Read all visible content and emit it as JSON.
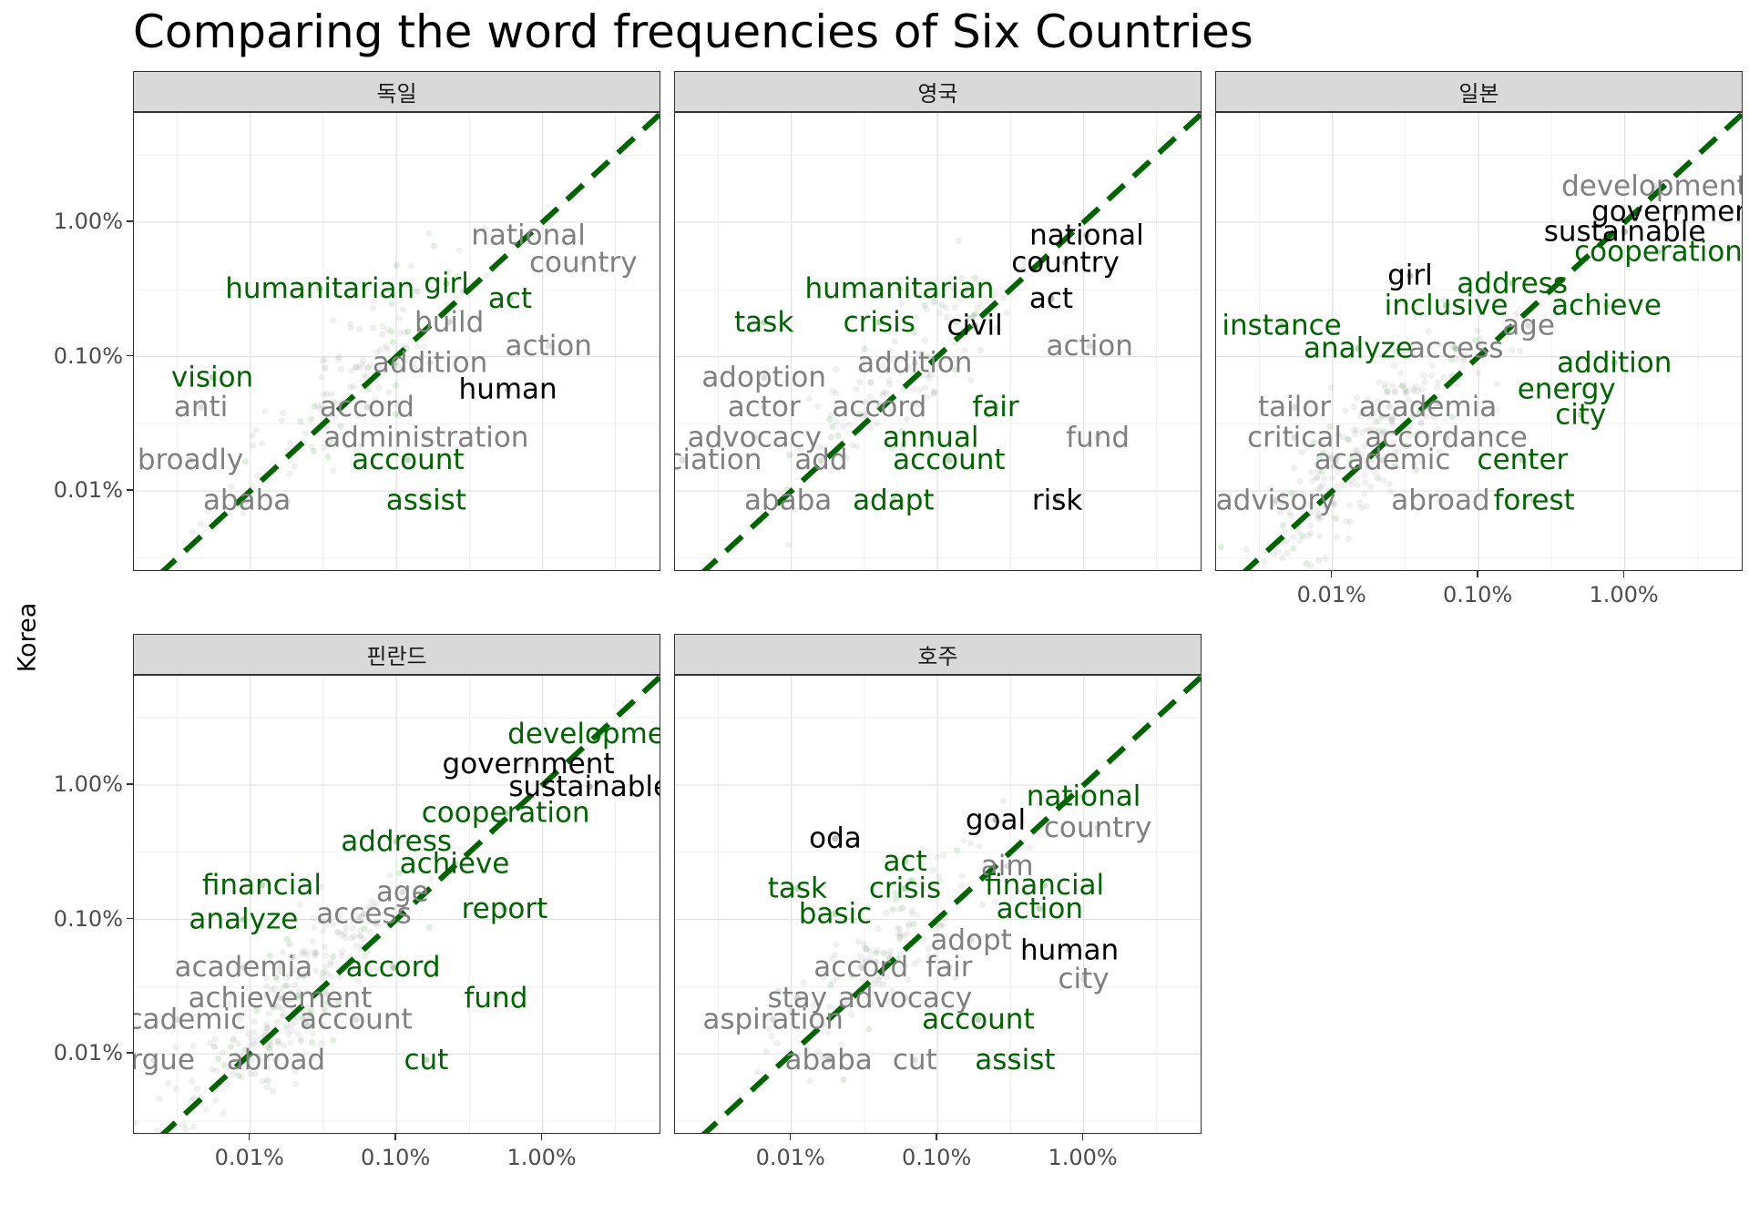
{
  "chart_data": {
    "type": "scatter",
    "title": "Comparing the word frequencies of Six Countries",
    "ylabel": "Korea",
    "xlabel": "",
    "scale": "log10",
    "xlim_percent": [
      0.0016,
      6.5
    ],
    "ylim_percent": [
      0.0025,
      6.5
    ],
    "x_tick_labels": [
      "0.01%",
      "0.10%",
      "1.00%"
    ],
    "y_tick_labels": [
      "0.01%",
      "0.10%",
      "1.00%"
    ],
    "grid": true,
    "reference_line": "y = x (dashed, dark green)",
    "colors": {
      "green": "#006400",
      "black": "#000000",
      "gray": "#808080",
      "point": "#999999"
    },
    "panels": [
      {
        "name": "독일",
        "words": [
          {
            "text": "national",
            "x": 0.8,
            "y": 0.8,
            "color": "gray"
          },
          {
            "text": "country",
            "x": 1.9,
            "y": 0.5,
            "color": "gray"
          },
          {
            "text": "humanitarian",
            "x": 0.03,
            "y": 0.32,
            "color": "green"
          },
          {
            "text": "girl",
            "x": 0.22,
            "y": 0.35,
            "color": "green"
          },
          {
            "text": "act",
            "x": 0.6,
            "y": 0.27,
            "color": "green"
          },
          {
            "text": "build",
            "x": 0.23,
            "y": 0.18,
            "color": "gray"
          },
          {
            "text": "action",
            "x": 1.1,
            "y": 0.12,
            "color": "gray"
          },
          {
            "text": "vision",
            "x": 0.0055,
            "y": 0.07,
            "color": "green"
          },
          {
            "text": "addition",
            "x": 0.17,
            "y": 0.09,
            "color": "gray"
          },
          {
            "text": "human",
            "x": 0.58,
            "y": 0.057,
            "color": "black"
          },
          {
            "text": "anti",
            "x": 0.0046,
            "y": 0.042,
            "color": "gray"
          },
          {
            "text": "accord",
            "x": 0.063,
            "y": 0.042,
            "color": "gray"
          },
          {
            "text": "administration",
            "x": 0.16,
            "y": 0.025,
            "color": "gray"
          },
          {
            "text": "broadly",
            "x": 0.0039,
            "y": 0.017,
            "color": "gray"
          },
          {
            "text": "account",
            "x": 0.12,
            "y": 0.017,
            "color": "green"
          },
          {
            "text": "ababa",
            "x": 0.0095,
            "y": 0.0085,
            "color": "gray"
          },
          {
            "text": "assist",
            "x": 0.16,
            "y": 0.0085,
            "color": "green"
          }
        ]
      },
      {
        "name": "영국",
        "words": [
          {
            "text": "national",
            "x": 1.05,
            "y": 0.8,
            "color": "black"
          },
          {
            "text": "country",
            "x": 0.75,
            "y": 0.5,
            "color": "black"
          },
          {
            "text": "humanitarian",
            "x": 0.055,
            "y": 0.32,
            "color": "green"
          },
          {
            "text": "act",
            "x": 0.6,
            "y": 0.27,
            "color": "black"
          },
          {
            "text": "task",
            "x": 0.0065,
            "y": 0.18,
            "color": "green"
          },
          {
            "text": "crisis",
            "x": 0.04,
            "y": 0.18,
            "color": "green"
          },
          {
            "text": "civil",
            "x": 0.18,
            "y": 0.17,
            "color": "black"
          },
          {
            "text": "action",
            "x": 1.1,
            "y": 0.12,
            "color": "gray"
          },
          {
            "text": "adoption",
            "x": 0.0065,
            "y": 0.07,
            "color": "gray"
          },
          {
            "text": "addition",
            "x": 0.07,
            "y": 0.09,
            "color": "gray"
          },
          {
            "text": "actor",
            "x": 0.0065,
            "y": 0.042,
            "color": "gray"
          },
          {
            "text": "accord",
            "x": 0.04,
            "y": 0.042,
            "color": "gray"
          },
          {
            "text": "fair",
            "x": 0.25,
            "y": 0.042,
            "color": "green"
          },
          {
            "text": "advocacy",
            "x": 0.0056,
            "y": 0.025,
            "color": "gray"
          },
          {
            "text": "annual",
            "x": 0.09,
            "y": 0.025,
            "color": "green"
          },
          {
            "text": "fund",
            "x": 1.25,
            "y": 0.025,
            "color": "gray"
          },
          {
            "text": "association",
            "x": 0.0018,
            "y": 0.017,
            "color": "gray"
          },
          {
            "text": "add",
            "x": 0.016,
            "y": 0.017,
            "color": "gray"
          },
          {
            "text": "account",
            "x": 0.12,
            "y": 0.017,
            "color": "green"
          },
          {
            "text": "ababa",
            "x": 0.0095,
            "y": 0.0085,
            "color": "gray"
          },
          {
            "text": "adapt",
            "x": 0.05,
            "y": 0.0085,
            "color": "green"
          },
          {
            "text": "risk",
            "x": 0.66,
            "y": 0.0085,
            "color": "black"
          }
        ]
      },
      {
        "name": "일본",
        "words": [
          {
            "text": "development",
            "x": 1.6,
            "y": 1.85,
            "color": "gray"
          },
          {
            "text": "government",
            "x": 2.3,
            "y": 1.2,
            "color": "black"
          },
          {
            "text": "sustainable",
            "x": 1.0,
            "y": 0.85,
            "color": "black"
          },
          {
            "text": "cooperation",
            "x": 1.7,
            "y": 0.6,
            "color": "green"
          },
          {
            "text": "girl",
            "x": 0.034,
            "y": 0.4,
            "color": "black"
          },
          {
            "text": "address",
            "x": 0.17,
            "y": 0.35,
            "color": "green"
          },
          {
            "text": "inclusive",
            "x": 0.06,
            "y": 0.24,
            "color": "green"
          },
          {
            "text": "achieve",
            "x": 0.75,
            "y": 0.24,
            "color": "green"
          },
          {
            "text": "age",
            "x": 0.22,
            "y": 0.17,
            "color": "gray"
          },
          {
            "text": "instance",
            "x": 0.0045,
            "y": 0.17,
            "color": "green"
          },
          {
            "text": "access",
            "x": 0.07,
            "y": 0.115,
            "color": "gray"
          },
          {
            "text": "analyze",
            "x": 0.015,
            "y": 0.115,
            "color": "green"
          },
          {
            "text": "addition",
            "x": 0.85,
            "y": 0.09,
            "color": "green"
          },
          {
            "text": "energy",
            "x": 0.4,
            "y": 0.057,
            "color": "green"
          },
          {
            "text": "tailor",
            "x": 0.0055,
            "y": 0.042,
            "color": "gray"
          },
          {
            "text": "academia",
            "x": 0.045,
            "y": 0.042,
            "color": "gray"
          },
          {
            "text": "city",
            "x": 0.5,
            "y": 0.037,
            "color": "green"
          },
          {
            "text": "critical",
            "x": 0.0055,
            "y": 0.025,
            "color": "gray"
          },
          {
            "text": "accordance",
            "x": 0.06,
            "y": 0.025,
            "color": "gray"
          },
          {
            "text": "academic",
            "x": 0.022,
            "y": 0.017,
            "color": "gray"
          },
          {
            "text": "center",
            "x": 0.2,
            "y": 0.017,
            "color": "green"
          },
          {
            "text": "advisory",
            "x": 0.0041,
            "y": 0.0085,
            "color": "gray"
          },
          {
            "text": "abroad",
            "x": 0.055,
            "y": 0.0085,
            "color": "gray"
          },
          {
            "text": "forest",
            "x": 0.24,
            "y": 0.0085,
            "color": "green"
          }
        ]
      },
      {
        "name": "핀란드",
        "words": [
          {
            "text": "development",
            "x": 2.5,
            "y": 2.4,
            "color": "green"
          },
          {
            "text": "government",
            "x": 0.8,
            "y": 1.43,
            "color": "black"
          },
          {
            "text": "sustainable",
            "x": 2.1,
            "y": 0.97,
            "color": "black"
          },
          {
            "text": "cooperation",
            "x": 0.56,
            "y": 0.62,
            "color": "green"
          },
          {
            "text": "address",
            "x": 0.1,
            "y": 0.38,
            "color": "green"
          },
          {
            "text": "achieve",
            "x": 0.25,
            "y": 0.26,
            "color": "green"
          },
          {
            "text": "financial",
            "x": 0.012,
            "y": 0.18,
            "color": "green"
          },
          {
            "text": "age",
            "x": 0.11,
            "y": 0.16,
            "color": "gray"
          },
          {
            "text": "analyze",
            "x": 0.009,
            "y": 0.1,
            "color": "green"
          },
          {
            "text": "access",
            "x": 0.06,
            "y": 0.11,
            "color": "gray"
          },
          {
            "text": "report",
            "x": 0.55,
            "y": 0.12,
            "color": "green"
          },
          {
            "text": "academia",
            "x": 0.009,
            "y": 0.044,
            "color": "gray"
          },
          {
            "text": "accord",
            "x": 0.095,
            "y": 0.044,
            "color": "green"
          },
          {
            "text": "achievement",
            "x": 0.016,
            "y": 0.026,
            "color": "gray"
          },
          {
            "text": "fund",
            "x": 0.48,
            "y": 0.026,
            "color": "green"
          },
          {
            "text": "academic",
            "x": 0.0032,
            "y": 0.018,
            "color": "gray"
          },
          {
            "text": "account",
            "x": 0.053,
            "y": 0.018,
            "color": "gray"
          },
          {
            "text": "argue",
            "x": 0.0022,
            "y": 0.009,
            "color": "gray"
          },
          {
            "text": "abroad",
            "x": 0.015,
            "y": 0.009,
            "color": "gray"
          },
          {
            "text": "cut",
            "x": 0.16,
            "y": 0.009,
            "color": "green"
          }
        ]
      },
      {
        "name": "호주",
        "words": [
          {
            "text": "goal",
            "x": 0.25,
            "y": 0.55,
            "color": "black"
          },
          {
            "text": "national",
            "x": 1.0,
            "y": 0.82,
            "color": "green"
          },
          {
            "text": "country",
            "x": 1.25,
            "y": 0.48,
            "color": "gray"
          },
          {
            "text": "oda",
            "x": 0.02,
            "y": 0.4,
            "color": "black"
          },
          {
            "text": "act",
            "x": 0.06,
            "y": 0.27,
            "color": "green"
          },
          {
            "text": "aim",
            "x": 0.3,
            "y": 0.25,
            "color": "gray"
          },
          {
            "text": "task",
            "x": 0.011,
            "y": 0.17,
            "color": "green"
          },
          {
            "text": "crisis",
            "x": 0.06,
            "y": 0.17,
            "color": "green"
          },
          {
            "text": "financial",
            "x": 0.54,
            "y": 0.18,
            "color": "green"
          },
          {
            "text": "basic",
            "x": 0.02,
            "y": 0.11,
            "color": "green"
          },
          {
            "text": "action",
            "x": 0.5,
            "y": 0.12,
            "color": "green"
          },
          {
            "text": "adopt",
            "x": 0.17,
            "y": 0.07,
            "color": "gray"
          },
          {
            "text": "human",
            "x": 0.8,
            "y": 0.059,
            "color": "black"
          },
          {
            "text": "accord",
            "x": 0.03,
            "y": 0.044,
            "color": "gray"
          },
          {
            "text": "fair",
            "x": 0.12,
            "y": 0.044,
            "color": "gray"
          },
          {
            "text": "city",
            "x": 1.0,
            "y": 0.036,
            "color": "gray"
          },
          {
            "text": "stay",
            "x": 0.011,
            "y": 0.026,
            "color": "gray"
          },
          {
            "text": "advocacy",
            "x": 0.06,
            "y": 0.026,
            "color": "gray"
          },
          {
            "text": "aspiration",
            "x": 0.0075,
            "y": 0.018,
            "color": "gray"
          },
          {
            "text": "account",
            "x": 0.19,
            "y": 0.018,
            "color": "green"
          },
          {
            "text": "ababa",
            "x": 0.018,
            "y": 0.009,
            "color": "gray"
          },
          {
            "text": "cut",
            "x": 0.07,
            "y": 0.009,
            "color": "gray"
          },
          {
            "text": "assist",
            "x": 0.34,
            "y": 0.009,
            "color": "green"
          }
        ]
      }
    ]
  }
}
